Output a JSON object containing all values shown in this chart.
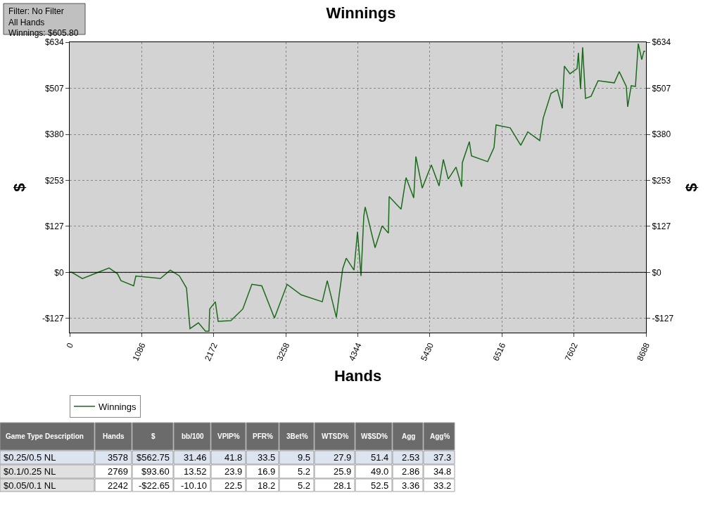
{
  "chart_data": {
    "type": "line",
    "title": "Winnings",
    "xlabel": "Hands",
    "ylabel": "$",
    "y2label": "$",
    "x": [
      0,
      32,
      191,
      456,
      594,
      721,
      774,
      965,
      997,
      1368,
      1517,
      1655,
      1761,
      1814,
      1941,
      2047,
      2100,
      2111,
      2196,
      2238,
      2429,
      2610,
      2747,
      2896,
      3087,
      3278,
      3490,
      3808,
      3883,
      4020,
      4063,
      4116,
      4169,
      4286,
      4339,
      4392,
      4434,
      4455,
      4604,
      4710,
      4805,
      4816,
      4996,
      5071,
      5187,
      5219,
      5315,
      5452,
      5569,
      5633,
      5707,
      5824,
      5909,
      5919,
      6025,
      6057,
      6301,
      6397,
      6428,
      6641,
      6800,
      6906,
      7086,
      7139,
      7256,
      7351,
      7426,
      7457,
      7542,
      7648,
      7669,
      7701,
      7733,
      7776,
      7860,
      7966,
      8210,
      8285,
      8391,
      8412,
      8465,
      8529,
      8571,
      8624,
      8656,
      8677
    ],
    "series": [
      {
        "name": "Winnings",
        "color": "#1a6b1a",
        "values": [
          0,
          0,
          -17,
          2,
          12,
          -4,
          -23,
          -37,
          -10,
          -17,
          6,
          -10,
          -43,
          -155,
          -139,
          -162,
          -162,
          -101,
          -81,
          -135,
          -133,
          -101,
          -33,
          -37,
          -126,
          -33,
          -62,
          -81,
          -23,
          -124,
          -62,
          10,
          39,
          6,
          112,
          -10,
          155,
          180,
          68,
          128,
          108,
          209,
          174,
          261,
          205,
          319,
          232,
          296,
          238,
          311,
          257,
          290,
          236,
          302,
          360,
          321,
          305,
          344,
          406,
          398,
          350,
          387,
          363,
          425,
          493,
          503,
          452,
          568,
          547,
          561,
          605,
          505,
          620,
          479,
          485,
          528,
          522,
          553,
          512,
          456,
          514,
          512,
          630,
          586,
          609,
          609
        ]
      }
    ],
    "xlim": [
      0,
      8688
    ],
    "xticks": [
      0,
      1086,
      2172,
      3258,
      4344,
      5430,
      6516,
      7602,
      8688
    ],
    "ylim": [
      -166,
      634
    ],
    "yticks": [
      {
        "value": -127,
        "label": "-$127"
      },
      {
        "value": 0,
        "label": "$0"
      },
      {
        "value": 127,
        "label": "$127"
      },
      {
        "value": 253,
        "label": "$253"
      },
      {
        "value": 380,
        "label": "$380"
      },
      {
        "value": 507,
        "label": "$507"
      },
      {
        "value": 634,
        "label": "$634"
      }
    ],
    "y2lim": [
      -166,
      634
    ],
    "y2ticks": [
      {
        "value": -127,
        "label": "-$127"
      },
      {
        "value": 0,
        "label": "$0"
      },
      {
        "value": 127,
        "label": "$127"
      },
      {
        "value": 253,
        "label": "$253"
      },
      {
        "value": 380,
        "label": "$380"
      },
      {
        "value": 507,
        "label": "$507"
      },
      {
        "value": 634,
        "label": "$634"
      }
    ],
    "ref_lines": [
      {
        "axis": "y",
        "value": 0,
        "color": "#000000"
      }
    ],
    "grid": true,
    "legend": "bottom left",
    "marker": "none",
    "line_style": "solid",
    "annotations": [
      "Filter: No Filter\nAll Hands\nWinnings: $605.80",
      "Game Type Description",
      "Hands",
      "$",
      "bb/100",
      "VPIP%",
      "PFR%",
      "3Bet%",
      "WTSD%",
      "W$SD%",
      "Agg",
      "Agg%",
      "$0.25/0.5 NL",
      "3578",
      "$562.75",
      "31.46",
      "41.8",
      "33.5",
      "9.5",
      "27.9",
      "51.4",
      "2.53",
      "37.3",
      "$0.1/0.25 NL",
      "2769",
      "$93.60",
      "13.52",
      "23.9",
      "16.9",
      "5.2",
      "25.9",
      "49.0",
      "2.86",
      "34.8",
      "$0.05/0.1 NL",
      "2242",
      "-$22.65",
      "-10.10",
      "22.5",
      "18.2",
      "5.2",
      "28.1",
      "52.5",
      "3.36",
      "33.2"
    ]
  }
}
